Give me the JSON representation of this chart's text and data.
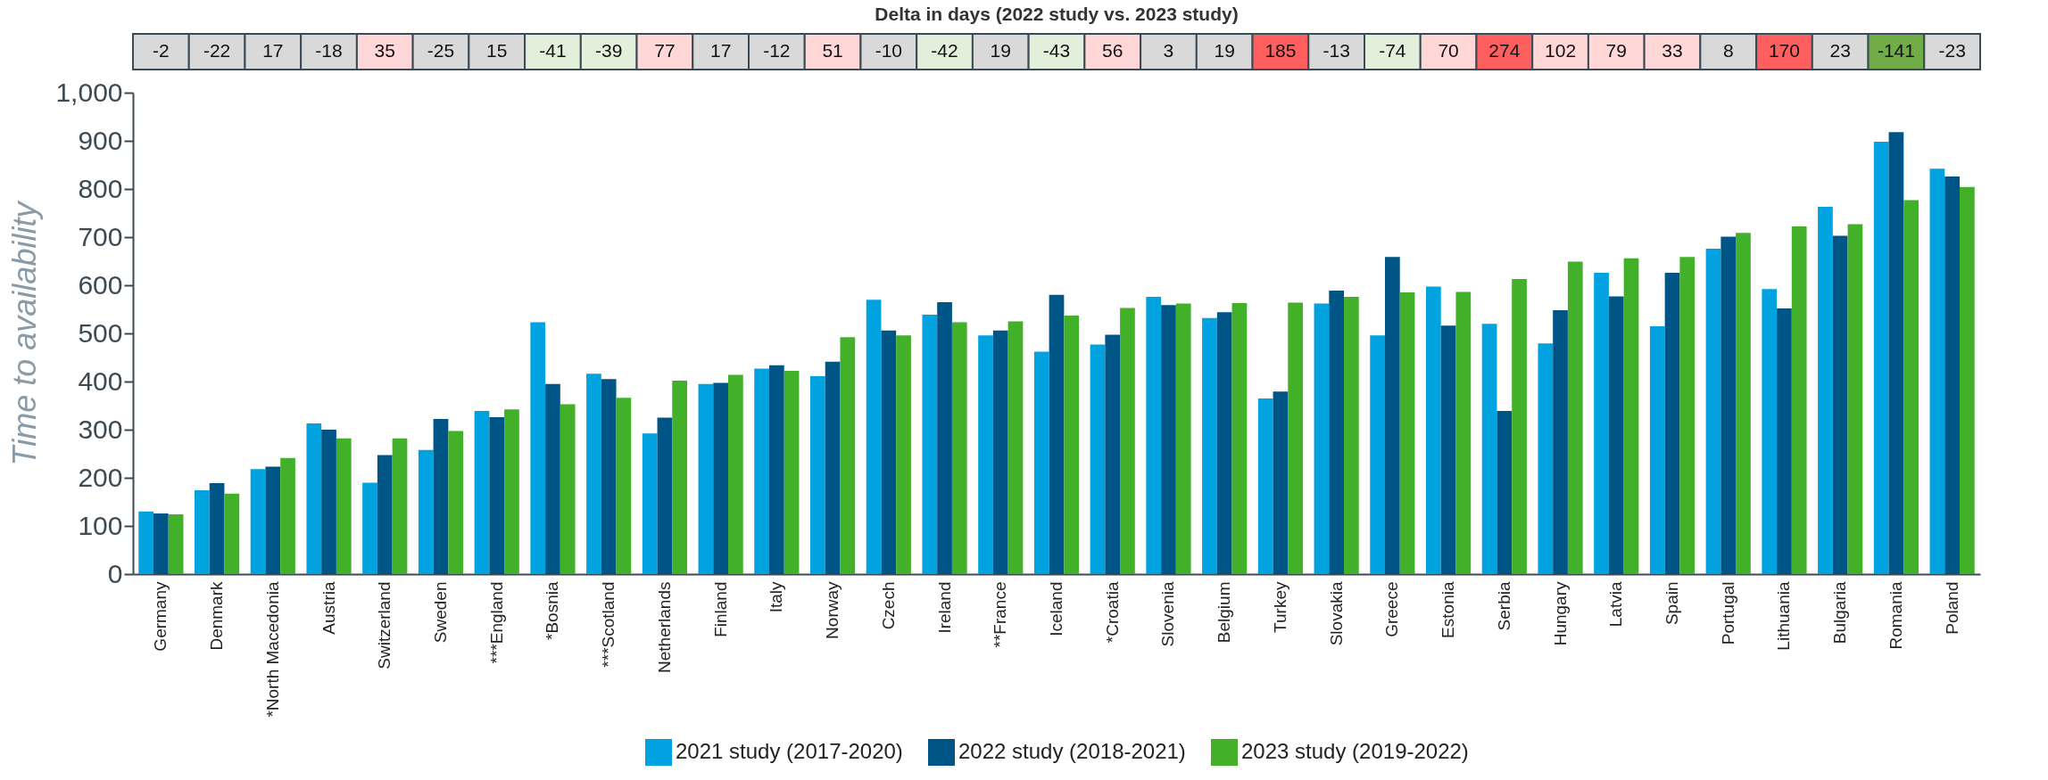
{
  "chart_data": [
    {
      "type": "heatmap",
      "title": "Delta in days (2022 study vs. 2023 study)",
      "categories": [
        null,
        null,
        null,
        null,
        null,
        null,
        null,
        null,
        null,
        null,
        null,
        null,
        null,
        null,
        null,
        null,
        null,
        null,
        null,
        null,
        null,
        null,
        null,
        null,
        null,
        null,
        null,
        null,
        null,
        null,
        null,
        null,
        null
      ],
      "y_categories": [
        null
      ],
      "tick_labels": false,
      "data_labels": true,
      "cells": [
        [
          -2,
          -22,
          17,
          -18,
          35,
          -25,
          15,
          -41,
          -39,
          77,
          17,
          -12,
          51,
          -10,
          -42,
          19,
          -43,
          56,
          3,
          19,
          185,
          -13,
          -74,
          70,
          274,
          102,
          79,
          33,
          8,
          170,
          23,
          -141,
          -23
        ]
      ]
    },
    {
      "type": "bar",
      "ylabel": "Time to availability",
      "legend": "bottom",
      "ylim": [
        0,
        1000
      ],
      "yticks": [
        0,
        100,
        200,
        300,
        400,
        500,
        600,
        700,
        800,
        900,
        {
          "value": 1000,
          "label": "1,000"
        }
      ],
      "categories": [
        "Germany",
        "Denmark",
        "*North Macedonia",
        "Austria",
        "Switzerland",
        "Sweden",
        "***England",
        "*Bosnia",
        "***Scotland",
        "Netherlands",
        "Finland",
        "Italy",
        "Norway",
        "Czech",
        "Ireland",
        "**France",
        "Iceland",
        "*Croatia",
        "Slovenia",
        "Belgium",
        "Turkey",
        "Slovakia",
        "Greece",
        "Estonia",
        "Serbia",
        "Hungary",
        "Latvia",
        "Spain",
        "Portugal",
        "Lithuania",
        "Bulgaria",
        "Romania",
        "Poland"
      ],
      "series": [
        {
          "name": "2021 study (2017-2020)",
          "color": "#00a3e0",
          "values": [
            130,
            174,
            218,
            313,
            190,
            258,
            339,
            523,
            416,
            292,
            395,
            427,
            411,
            570,
            539,
            496,
            462,
            477,
            576,
            532,
            365,
            562,
            496,
            597,
            520,
            479,
            626,
            515,
            676,
            592,
            763,
            898,
            842
          ]
        },
        {
          "name": "2022 study (2018-2021)",
          "color": "#005587",
          "values": [
            126,
            189,
            223,
            300,
            247,
            322,
            326,
            395,
            405,
            325,
            397,
            434,
            441,
            506,
            565,
            506,
            580,
            497,
            559,
            544,
            379,
            589,
            659,
            516,
            339,
            548,
            577,
            626,
            701,
            552,
            703,
            918,
            826
          ]
        },
        {
          "name": "2023 study (2019-2022)",
          "color": "#43b02a",
          "values": [
            124,
            167,
            241,
            282,
            282,
            297,
            342,
            353,
            366,
            402,
            414,
            422,
            492,
            496,
            523,
            525,
            537,
            553,
            562,
            563,
            564,
            576,
            585,
            586,
            613,
            649,
            656,
            659,
            709,
            722,
            727,
            777,
            804
          ]
        }
      ]
    }
  ]
}
